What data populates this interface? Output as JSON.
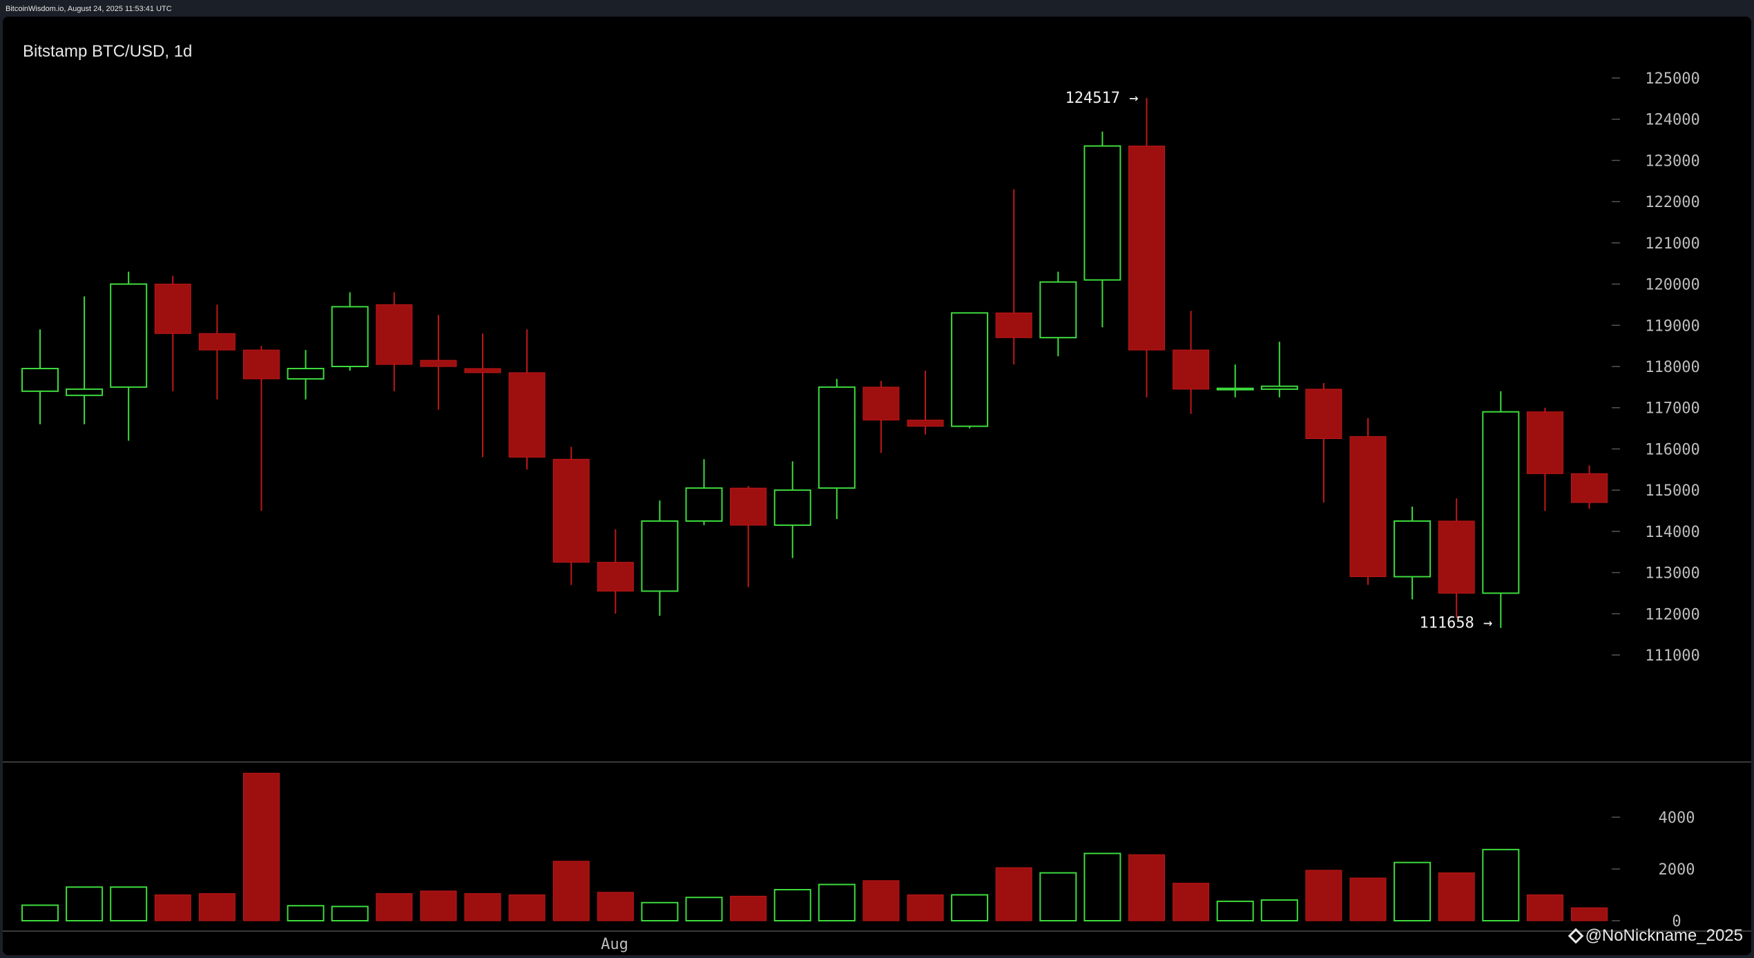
{
  "header": {
    "source": "BitcoinWisdom.io, August 24, 2025 11:53:41 UTC"
  },
  "watermark": {
    "text": "@NoNickname_2025",
    "icon": "binance-square-icon"
  },
  "colors": {
    "up": "#3ddc3d",
    "down": "#9e0f0f",
    "down_edge": "#c01818",
    "axis_text": "#bdbdbd",
    "divider": "#3a3a3a"
  },
  "chart_data": {
    "type": "candlestick",
    "title": "Bitstamp BTC/USD, 1d",
    "price_axis": {
      "ticks": [
        111000,
        112000,
        113000,
        114000,
        115000,
        116000,
        117000,
        118000,
        119000,
        120000,
        121000,
        122000,
        123000,
        124000,
        125000
      ]
    },
    "volume_axis": {
      "ticks": [
        0,
        2000,
        4000
      ]
    },
    "x_labels": [
      "Aug"
    ],
    "annotations": [
      {
        "label": "124517 →",
        "value": 124517
      },
      {
        "label": "111658 →",
        "value": 111658
      }
    ],
    "candles": [
      {
        "o": 117400,
        "h": 118900,
        "l": 116600,
        "c": 117950,
        "v": 600
      },
      {
        "o": 117300,
        "h": 119700,
        "l": 116600,
        "c": 117450,
        "v": 1300
      },
      {
        "o": 117500,
        "h": 120300,
        "l": 116200,
        "c": 120000,
        "v": 1300
      },
      {
        "o": 120000,
        "h": 120200,
        "l": 117400,
        "c": 118800,
        "v": 1000
      },
      {
        "o": 118800,
        "h": 119500,
        "l": 117200,
        "c": 118400,
        "v": 1050
      },
      {
        "o": 118400,
        "h": 118500,
        "l": 114500,
        "c": 117700,
        "v": 5700
      },
      {
        "o": 117700,
        "h": 118400,
        "l": 117200,
        "c": 117950,
        "v": 580
      },
      {
        "o": 118000,
        "h": 119800,
        "l": 117900,
        "c": 119450,
        "v": 550
      },
      {
        "o": 119500,
        "h": 119800,
        "l": 117400,
        "c": 118050,
        "v": 1050
      },
      {
        "o": 118150,
        "h": 119250,
        "l": 116950,
        "c": 118000,
        "v": 1150
      },
      {
        "o": 117950,
        "h": 118800,
        "l": 115800,
        "c": 117850,
        "v": 1050
      },
      {
        "o": 117850,
        "h": 118900,
        "l": 115500,
        "c": 115800,
        "v": 1000
      },
      {
        "o": 115750,
        "h": 116050,
        "l": 112700,
        "c": 113250,
        "v": 2300
      },
      {
        "o": 113250,
        "h": 114050,
        "l": 112000,
        "c": 112550,
        "v": 1100
      },
      {
        "o": 112550,
        "h": 114750,
        "l": 111950,
        "c": 114250,
        "v": 700
      },
      {
        "o": 114250,
        "h": 115750,
        "l": 114150,
        "c": 115050,
        "v": 900
      },
      {
        "o": 115050,
        "h": 115100,
        "l": 112650,
        "c": 114150,
        "v": 950
      },
      {
        "o": 114150,
        "h": 115700,
        "l": 113350,
        "c": 115000,
        "v": 1200
      },
      {
        "o": 115050,
        "h": 117700,
        "l": 114300,
        "c": 117500,
        "v": 1400
      },
      {
        "o": 117500,
        "h": 117650,
        "l": 115900,
        "c": 116700,
        "v": 1550
      },
      {
        "o": 116700,
        "h": 117900,
        "l": 116350,
        "c": 116550,
        "v": 1000
      },
      {
        "o": 116550,
        "h": 119300,
        "l": 116500,
        "c": 119300,
        "v": 1000
      },
      {
        "o": 119300,
        "h": 122300,
        "l": 118050,
        "c": 118700,
        "v": 2050
      },
      {
        "o": 118700,
        "h": 120300,
        "l": 118250,
        "c": 120050,
        "v": 1850
      },
      {
        "o": 120100,
        "h": 123700,
        "l": 118950,
        "c": 123350,
        "v": 2600
      },
      {
        "o": 123350,
        "h": 124517,
        "l": 117250,
        "c": 118400,
        "v": 2550
      },
      {
        "o": 118400,
        "h": 119350,
        "l": 116850,
        "c": 117450,
        "v": 1450
      },
      {
        "o": 117450,
        "h": 118050,
        "l": 117250,
        "c": 117470,
        "v": 750
      },
      {
        "o": 117450,
        "h": 118600,
        "l": 117250,
        "c": 117520,
        "v": 800
      },
      {
        "o": 117450,
        "h": 117600,
        "l": 114700,
        "c": 116250,
        "v": 1950
      },
      {
        "o": 116300,
        "h": 116750,
        "l": 112700,
        "c": 112900,
        "v": 1650
      },
      {
        "o": 112900,
        "h": 114600,
        "l": 112350,
        "c": 114250,
        "v": 2250
      },
      {
        "o": 114250,
        "h": 114800,
        "l": 111900,
        "c": 112500,
        "v": 1850
      },
      {
        "o": 112500,
        "h": 117400,
        "l": 111658,
        "c": 116900,
        "v": 2750
      },
      {
        "o": 116900,
        "h": 117000,
        "l": 114500,
        "c": 115400,
        "v": 1000
      },
      {
        "o": 115400,
        "h": 115600,
        "l": 114550,
        "c": 114700,
        "v": 500
      }
    ]
  }
}
